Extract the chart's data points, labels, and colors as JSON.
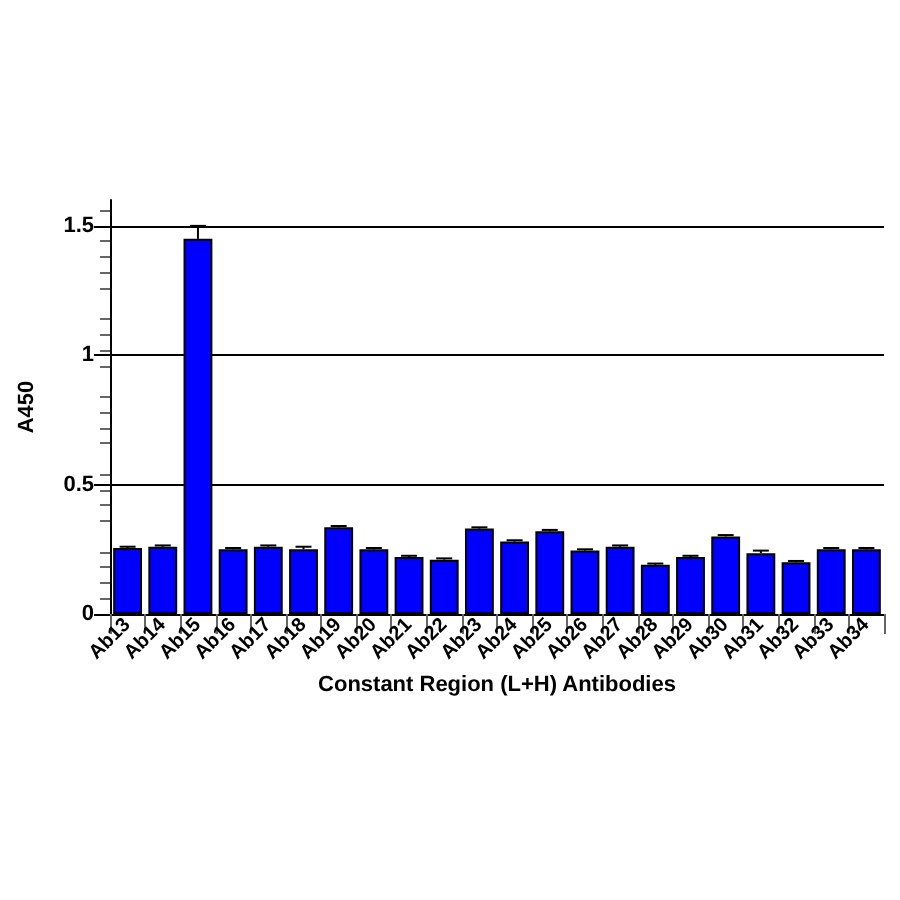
{
  "chart_data": {
    "type": "bar",
    "xlabel": "Constant Region (L+H) Antibodies",
    "ylabel": "A450",
    "categories": [
      "Ab13",
      "Ab14",
      "Ab15",
      "Ab16",
      "Ab17",
      "Ab18",
      "Ab19",
      "Ab20",
      "Ab21",
      "Ab22",
      "Ab23",
      "Ab24",
      "Ab25",
      "Ab26",
      "Ab27",
      "Ab28",
      "Ab29",
      "Ab30",
      "Ab31",
      "Ab32",
      "Ab33",
      "Ab34"
    ],
    "values": [
      0.255,
      0.26,
      1.45,
      0.25,
      0.26,
      0.25,
      0.335,
      0.25,
      0.22,
      0.21,
      0.33,
      0.28,
      0.32,
      0.245,
      0.26,
      0.19,
      0.22,
      0.3,
      0.235,
      0.2,
      0.25,
      0.25
    ],
    "errors": [
      0.005,
      0.005,
      0.05,
      0.005,
      0.005,
      0.01,
      0.005,
      0.005,
      0.005,
      0.005,
      0.005,
      0.005,
      0.005,
      0.005,
      0.005,
      0.005,
      0.005,
      0.005,
      0.01,
      0.005,
      0.005,
      0.005
    ],
    "color": "#0000ff",
    "ylim": [
      0,
      1.6
    ],
    "yticks": [
      0,
      {
        "value": 0.5,
        "label": "0.5"
      },
      1,
      {
        "value": 1.5,
        "label": "1.5"
      }
    ],
    "grid": "y"
  }
}
